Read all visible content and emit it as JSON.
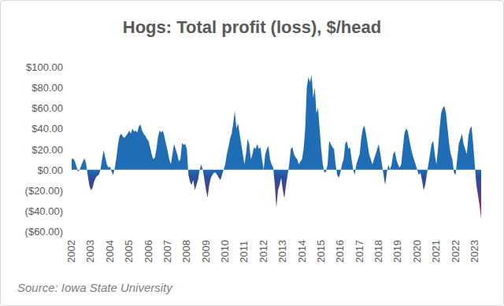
{
  "chart_data": {
    "type": "area",
    "title": "Hogs: Total profit (loss), $/head",
    "source": "Source: Iowa State University",
    "categories": [
      "2002",
      null,
      null,
      null,
      null,
      null,
      null,
      null,
      null,
      null,
      null,
      null,
      "2003",
      null,
      null,
      null,
      null,
      null,
      null,
      null,
      null,
      null,
      null,
      null,
      "2004",
      null,
      null,
      null,
      null,
      null,
      null,
      null,
      null,
      null,
      null,
      null,
      "2005",
      null,
      null,
      null,
      null,
      null,
      null,
      null,
      null,
      null,
      null,
      null,
      "2006",
      null,
      null,
      null,
      null,
      null,
      null,
      null,
      null,
      null,
      null,
      null,
      "2007",
      null,
      null,
      null,
      null,
      null,
      null,
      null,
      null,
      null,
      null,
      null,
      "2008",
      null,
      null,
      null,
      null,
      null,
      null,
      null,
      null,
      null,
      null,
      null,
      "2009",
      null,
      null,
      null,
      null,
      null,
      null,
      null,
      null,
      null,
      null,
      null,
      "2010",
      null,
      null,
      null,
      null,
      null,
      null,
      null,
      null,
      null,
      null,
      null,
      "2011",
      null,
      null,
      null,
      null,
      null,
      null,
      null,
      null,
      null,
      null,
      null,
      "2012",
      null,
      null,
      null,
      null,
      null,
      null,
      null,
      null,
      null,
      null,
      null,
      "2013",
      null,
      null,
      null,
      null,
      null,
      null,
      null,
      null,
      null,
      null,
      null,
      "2014",
      null,
      null,
      null,
      null,
      null,
      null,
      null,
      null,
      null,
      null,
      null,
      "2015",
      null,
      null,
      null,
      null,
      null,
      null,
      null,
      null,
      null,
      null,
      null,
      "2016",
      null,
      null,
      null,
      null,
      null,
      null,
      null,
      null,
      null,
      null,
      null,
      "2017",
      null,
      null,
      null,
      null,
      null,
      null,
      null,
      null,
      null,
      null,
      null,
      "2018",
      null,
      null,
      null,
      null,
      null,
      null,
      null,
      null,
      null,
      null,
      null,
      "2019",
      null,
      null,
      null,
      null,
      null,
      null,
      null,
      null,
      null,
      null,
      null,
      "2020",
      null,
      null,
      null,
      null,
      null,
      null,
      null,
      null,
      null,
      null,
      null,
      "2021",
      null,
      null,
      null,
      null,
      null,
      null,
      null,
      null,
      null,
      null,
      null,
      "2022",
      null,
      null,
      null,
      null,
      null,
      null,
      null,
      null,
      null,
      null,
      null,
      "2023",
      null,
      null,
      null,
      null
    ],
    "values": [
      10,
      11,
      8,
      3,
      -2,
      0,
      4,
      8,
      11,
      6,
      -5,
      -15,
      -20,
      -18,
      -12,
      -8,
      -6,
      -5,
      0,
      10,
      19,
      12,
      5,
      2,
      3,
      -2,
      -5,
      2,
      12,
      25,
      33,
      35,
      32,
      31,
      33,
      35,
      38,
      35,
      40,
      37,
      38,
      36,
      42,
      44,
      38,
      35,
      33,
      30,
      28,
      22,
      15,
      10,
      12,
      20,
      32,
      38,
      36,
      38,
      32,
      25,
      18,
      10,
      5,
      15,
      25,
      20,
      15,
      8,
      10,
      26,
      24,
      25,
      20,
      -5,
      -12,
      -15,
      -10,
      -20,
      -15,
      -10,
      0,
      5,
      0,
      -10,
      -20,
      -27,
      -15,
      -8,
      -5,
      -3,
      -3,
      -5,
      -8,
      -10,
      -5,
      0,
      5,
      15,
      22,
      30,
      35,
      45,
      57,
      40,
      45,
      35,
      25,
      15,
      5,
      15,
      30,
      25,
      10,
      15,
      22,
      20,
      25,
      20,
      22,
      10,
      0,
      15,
      20,
      23,
      10,
      5,
      2,
      -15,
      -37,
      -20,
      -15,
      -8,
      -20,
      -28,
      -15,
      -5,
      5,
      20,
      22,
      15,
      12,
      10,
      5,
      8,
      10,
      20,
      40,
      80,
      90,
      85,
      92,
      70,
      80,
      55,
      60,
      40,
      20,
      5,
      -3,
      -2,
      5,
      28,
      25,
      22,
      20,
      5,
      -5,
      -8,
      -3,
      5,
      10,
      25,
      28,
      20,
      22,
      10,
      0,
      -5,
      5,
      10,
      15,
      30,
      40,
      43,
      35,
      25,
      15,
      10,
      5,
      10,
      15,
      20,
      25,
      15,
      5,
      -5,
      -15,
      -3,
      5,
      0,
      5,
      15,
      18,
      10,
      5,
      2,
      5,
      20,
      35,
      40,
      38,
      30,
      22,
      15,
      10,
      5,
      0,
      -5,
      -3,
      -10,
      -20,
      -15,
      -5,
      5,
      15,
      25,
      28,
      15,
      5,
      20,
      40,
      55,
      60,
      62,
      55,
      40,
      25,
      15,
      10,
      -3,
      -5,
      10,
      25,
      30,
      35,
      25,
      20,
      15,
      32,
      40,
      42,
      25,
      5,
      -15,
      -25,
      -35,
      -48
    ],
    "color": "#1f6db4",
    "ylim": [
      -60,
      100
    ],
    "yticks": [
      {
        "value": -60,
        "label": "($60.00)"
      },
      {
        "value": -40,
        "label": "($40.00)"
      },
      {
        "value": -20,
        "label": "($20.00)"
      },
      {
        "value": 0,
        "label": "$0.00"
      },
      {
        "value": 20,
        "label": "$20.00"
      },
      {
        "value": 40,
        "label": "$40.00"
      },
      {
        "value": 60,
        "label": "$60.00"
      },
      {
        "value": 80,
        "label": "$80.00"
      },
      {
        "value": 100,
        "label": "$100.00"
      }
    ],
    "grid": false
  }
}
